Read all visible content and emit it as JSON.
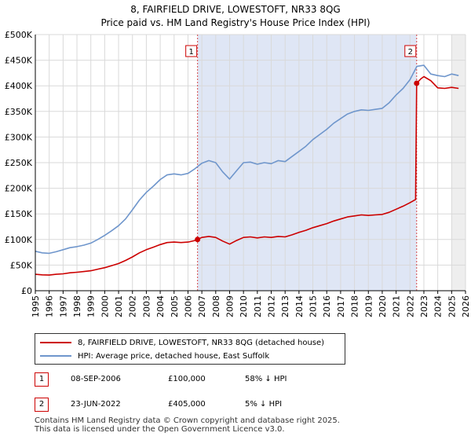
{
  "title_line1": "8, FAIRFIELD DRIVE, LOWESTOFT, NR33 8QG",
  "title_line2": "Price paid vs. HM Land Registry's House Price Index (HPI)",
  "colors": {
    "property": "#cc0000",
    "hpi": "#6f96cc",
    "shade": "#dfe6f5",
    "grid": "#d9d9d9"
  },
  "legend": {
    "property_label": "8, FAIRFIELD DRIVE, LOWESTOFT, NR33 8QG (detached house)",
    "hpi_label": "HPI: Average price, detached house, East Suffolk"
  },
  "sales": [
    {
      "num": "1",
      "date": "08-SEP-2006",
      "price": "£100,000",
      "hpi": "58% ↓ HPI"
    },
    {
      "num": "2",
      "date": "23-JUN-2022",
      "price": "£405,000",
      "hpi": "5% ↓ HPI"
    }
  ],
  "footer": {
    "line1": "Contains HM Land Registry data © Crown copyright and database right 2025.",
    "line2": "This data is licensed under the Open Government Licence v3.0."
  },
  "chart_data": {
    "type": "line",
    "ylim": [
      0,
      500000
    ],
    "xlim": [
      1995,
      2026
    ],
    "y_ticks": [
      0,
      50000,
      100000,
      150000,
      200000,
      250000,
      300000,
      350000,
      400000,
      450000,
      500000
    ],
    "y_tick_labels": [
      "£0",
      "£50K",
      "£100K",
      "£150K",
      "£200K",
      "£250K",
      "£300K",
      "£350K",
      "£400K",
      "£450K",
      "£500K"
    ],
    "x_ticks": [
      1995,
      1996,
      1997,
      1998,
      1999,
      2000,
      2001,
      2002,
      2003,
      2004,
      2005,
      2006,
      2007,
      2008,
      2009,
      2010,
      2011,
      2012,
      2013,
      2014,
      2015,
      2016,
      2017,
      2018,
      2019,
      2020,
      2021,
      2022,
      2023,
      2024,
      2025,
      2026
    ],
    "x_tick_labels": [
      "1995",
      "1996",
      "1997",
      "1998",
      "1999",
      "2000",
      "2001",
      "2002",
      "2003",
      "2004",
      "2005",
      "2006",
      "2007",
      "2008",
      "2009",
      "2010",
      "2011",
      "2012",
      "2013",
      "2014",
      "2015",
      "2016",
      "2017",
      "2018",
      "2019",
      "2020",
      "2021",
      "2022",
      "2023",
      "2024",
      "2025",
      "2026"
    ],
    "shaded_range": [
      2006.69,
      2022.48
    ],
    "markers": [
      {
        "label": "1",
        "x": 2006.69,
        "y": 100000
      },
      {
        "label": "2",
        "x": 2022.48,
        "y": 405000
      }
    ],
    "series": [
      {
        "name": "HPI: Average price, detached house, East Suffolk",
        "x": [
          1995,
          1995.5,
          1996,
          1996.5,
          1997,
          1997.5,
          1998,
          1998.5,
          1999,
          1999.5,
          2000,
          2000.5,
          2001,
          2001.5,
          2002,
          2002.5,
          2003,
          2003.5,
          2004,
          2004.5,
          2005,
          2005.5,
          2006,
          2006.5,
          2007,
          2007.5,
          2008,
          2008.5,
          2009,
          2009.5,
          2010,
          2010.5,
          2011,
          2011.5,
          2012,
          2012.5,
          2013,
          2013.5,
          2014,
          2014.5,
          2015,
          2015.5,
          2016,
          2016.5,
          2017,
          2017.5,
          2018,
          2018.5,
          2019,
          2019.5,
          2020,
          2020.5,
          2021,
          2021.5,
          2022,
          2022.5,
          2023,
          2023.5,
          2024,
          2024.5,
          2025,
          2025.5
        ],
        "values": [
          77000,
          74000,
          73000,
          76000,
          80000,
          84000,
          86000,
          89000,
          93000,
          100000,
          108000,
          117000,
          127000,
          140000,
          158000,
          177000,
          192000,
          204000,
          217000,
          226000,
          228000,
          226000,
          229000,
          238000,
          249000,
          254000,
          250000,
          232000,
          218000,
          234000,
          250000,
          251000,
          247000,
          250000,
          248000,
          254000,
          252000,
          262000,
          272000,
          282000,
          295000,
          305000,
          315000,
          327000,
          336000,
          345000,
          350000,
          353000,
          352000,
          354000,
          356000,
          367000,
          382000,
          395000,
          412000,
          438000,
          440000,
          423000,
          420000,
          418000,
          423000,
          420000
        ]
      },
      {
        "name": "8, FAIRFIELD DRIVE, LOWESTOFT, NR33 8QG (detached house)",
        "x": [
          1995,
          1995.5,
          1996,
          1996.5,
          1997,
          1997.5,
          1998,
          1998.5,
          1999,
          1999.5,
          2000,
          2000.5,
          2001,
          2001.5,
          2002,
          2002.5,
          2003,
          2003.5,
          2004,
          2004.5,
          2005,
          2005.5,
          2006,
          2006.5,
          2006.69,
          2007,
          2007.5,
          2008,
          2008.5,
          2009,
          2009.5,
          2010,
          2010.5,
          2011,
          2011.5,
          2012,
          2012.5,
          2013,
          2013.5,
          2014,
          2014.5,
          2015,
          2015.5,
          2016,
          2016.5,
          2017,
          2017.5,
          2018,
          2018.5,
          2019,
          2019.5,
          2020,
          2020.5,
          2021,
          2021.5,
          2022,
          2022.4,
          2022.48,
          2022.8,
          2023,
          2023.5,
          2024,
          2024.5,
          2025,
          2025.5
        ],
        "values": [
          32000,
          31000,
          30500,
          32000,
          33000,
          35000,
          36000,
          37500,
          39000,
          42000,
          45000,
          49000,
          53000,
          59000,
          66000,
          74000,
          80000,
          85000,
          90000,
          94000,
          95000,
          94000,
          95000,
          98000,
          100000,
          104000,
          106000,
          104000,
          97000,
          91000,
          98000,
          104000,
          105000,
          103000,
          105000,
          104000,
          106000,
          105000,
          109000,
          114000,
          118000,
          123000,
          127000,
          131000,
          136000,
          140000,
          144000,
          146000,
          148000,
          147000,
          148000,
          149000,
          153000,
          159000,
          165000,
          172000,
          178000,
          405000,
          414000,
          418000,
          410000,
          396000,
          395000,
          397000,
          395000
        ]
      }
    ]
  }
}
